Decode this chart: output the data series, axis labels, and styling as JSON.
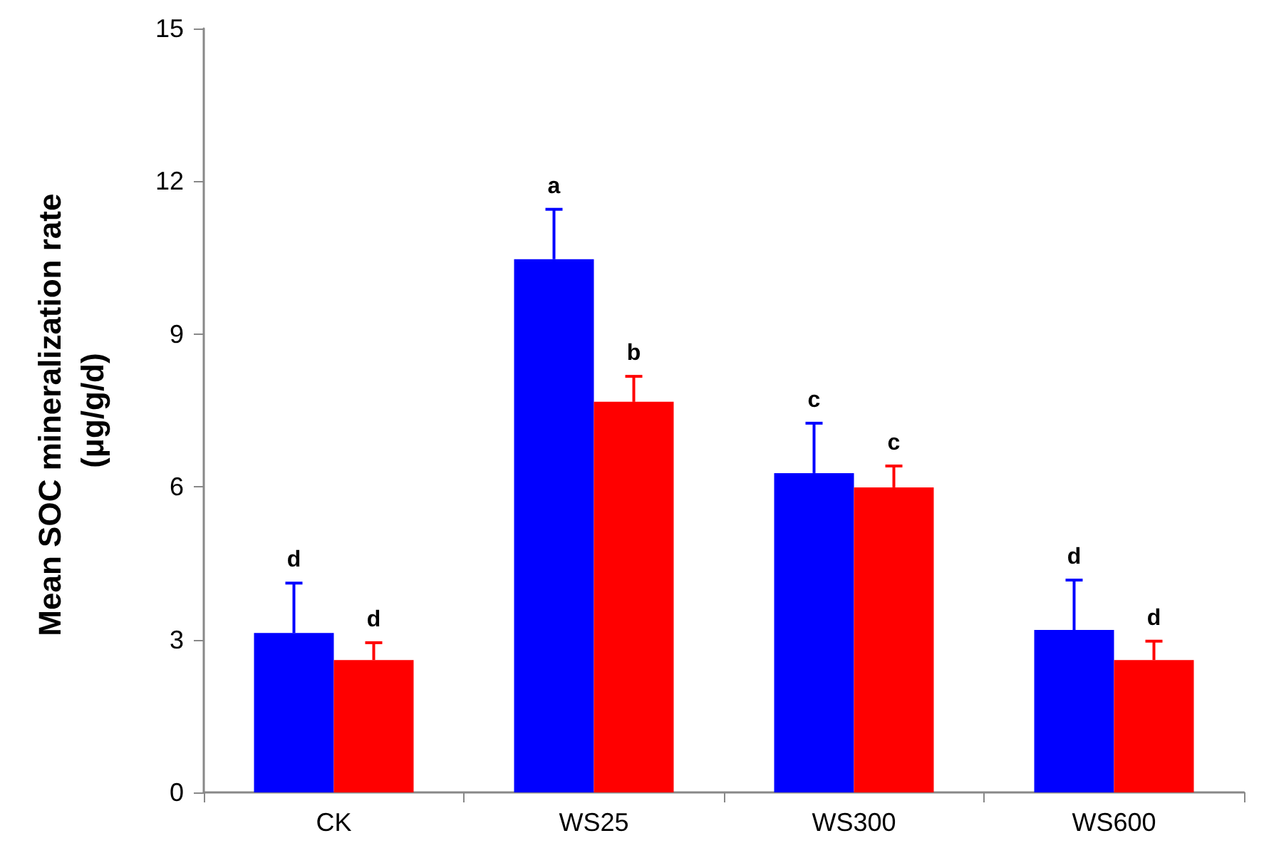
{
  "chart_data": {
    "type": "bar",
    "ylabel": "Mean SOC mineralization rate (μg/g/d)",
    "categories": [
      "CK",
      "WS25",
      "WS300",
      "WS600"
    ],
    "series": [
      {
        "color": "#0000ff",
        "values": [
          3.13,
          10.47,
          6.27,
          3.19
        ],
        "errors": [
          [
            3.13,
            4.11
          ],
          [
            10.47,
            11.45
          ],
          [
            6.27,
            7.25
          ],
          [
            3.19,
            4.17
          ]
        ],
        "value_labels": [
          "d",
          "a",
          "c",
          "d"
        ]
      },
      {
        "color": "#ff0000",
        "values": [
          2.6,
          7.67,
          5.99,
          2.6
        ],
        "errors": [
          [
            2.6,
            2.94
          ],
          [
            7.67,
            8.17
          ],
          [
            5.99,
            6.41
          ],
          [
            2.6,
            2.97
          ]
        ],
        "value_labels": [
          "d",
          "b",
          "c",
          "d"
        ]
      }
    ],
    "ylim": [
      0,
      15
    ],
    "yticks": [
      0,
      3,
      6,
      9,
      12,
      15
    ],
    "grid": false
  }
}
